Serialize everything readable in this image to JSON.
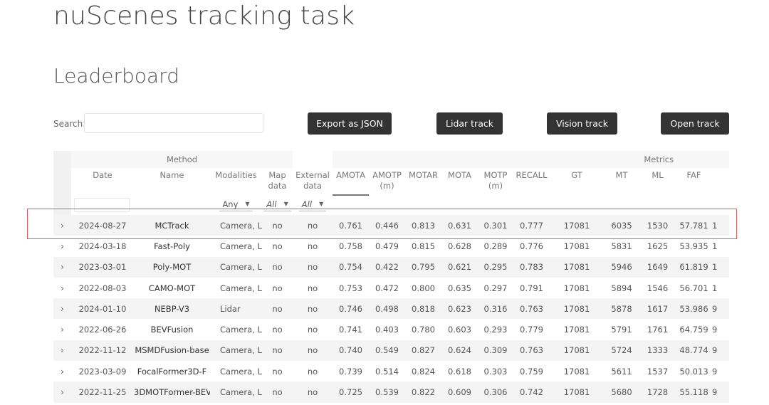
{
  "page": {
    "title": "nuScenes tracking task",
    "section": "Leaderboard"
  },
  "search": {
    "label": "Search:",
    "value": "",
    "placeholder": ""
  },
  "buttons": {
    "export_json": "Export as JSON",
    "lidar_track": "Lidar track",
    "vision_track": "Vision track",
    "open_track": "Open track"
  },
  "table": {
    "group_headers": {
      "method": "Method",
      "metrics": "Metrics"
    },
    "columns": {
      "date": "Date",
      "name": "Name",
      "modalities": "Modalities",
      "map_data": "Map data",
      "external_data": "External data",
      "amota": "AMOTA",
      "amotp": "AMOTP (m)",
      "motar": "MOTAR",
      "mota": "MOTA",
      "motp": "MOTP (m)",
      "recall": "RECALL",
      "gt": "GT",
      "mt": "MT",
      "ml": "ML",
      "faf": "FAF"
    },
    "sorted_column": "AMOTA",
    "filters": {
      "modalities": "Any",
      "map_data": "All",
      "external_data": "All"
    },
    "rows": [
      {
        "date": "2024-08-27",
        "name": "MCTrack",
        "modalities": "Camera, Lida",
        "map_data": "no",
        "external_data": "no",
        "amota": "0.761",
        "amotp": "0.446",
        "motar": "0.813",
        "mota": "0.631",
        "motp": "0.301",
        "recall": "0.777",
        "gt": "17081",
        "mt": "6035",
        "ml": "1530",
        "faf": "57.781",
        "next": "1"
      },
      {
        "date": "2024-03-18",
        "name": "Fast-Poly",
        "modalities": "Camera, Lida",
        "map_data": "no",
        "external_data": "no",
        "amota": "0.758",
        "amotp": "0.479",
        "motar": "0.815",
        "mota": "0.628",
        "motp": "0.289",
        "recall": "0.776",
        "gt": "17081",
        "mt": "5831",
        "ml": "1625",
        "faf": "53.935",
        "next": "1"
      },
      {
        "date": "2023-03-01",
        "name": "Poly-MOT",
        "modalities": "Camera, Lida",
        "map_data": "no",
        "external_data": "no",
        "amota": "0.754",
        "amotp": "0.422",
        "motar": "0.795",
        "mota": "0.621",
        "motp": "0.295",
        "recall": "0.783",
        "gt": "17081",
        "mt": "5946",
        "ml": "1649",
        "faf": "61.819",
        "next": "1"
      },
      {
        "date": "2022-08-03",
        "name": "CAMO-MOT",
        "modalities": "Camera, Lida",
        "map_data": "no",
        "external_data": "no",
        "amota": "0.753",
        "amotp": "0.472",
        "motar": "0.800",
        "mota": "0.635",
        "motp": "0.297",
        "recall": "0.791",
        "gt": "17081",
        "mt": "5894",
        "ml": "1546",
        "faf": "56.701",
        "next": "1"
      },
      {
        "date": "2024-01-10",
        "name": "NEBP-V3",
        "modalities": "Lidar",
        "map_data": "no",
        "external_data": "no",
        "amota": "0.746",
        "amotp": "0.498",
        "motar": "0.818",
        "mota": "0.623",
        "motp": "0.316",
        "recall": "0.763",
        "gt": "17081",
        "mt": "5878",
        "ml": "1617",
        "faf": "53.986",
        "next": "9"
      },
      {
        "date": "2022-06-26",
        "name": "BEVFusion",
        "modalities": "Camera, Lida",
        "map_data": "no",
        "external_data": "no",
        "amota": "0.741",
        "amotp": "0.403",
        "motar": "0.780",
        "mota": "0.603",
        "motp": "0.293",
        "recall": "0.779",
        "gt": "17081",
        "mt": "5791",
        "ml": "1761",
        "faf": "64.759",
        "next": "9"
      },
      {
        "date": "2022-11-12",
        "name": "MSMDFusion-base",
        "modalities": "Camera, Lida",
        "map_data": "no",
        "external_data": "no",
        "amota": "0.740",
        "amotp": "0.549",
        "motar": "0.827",
        "mota": "0.624",
        "motp": "0.309",
        "recall": "0.763",
        "gt": "17081",
        "mt": "5724",
        "ml": "1333",
        "faf": "48.774",
        "next": "9"
      },
      {
        "date": "2023-03-09",
        "name": "FocalFormer3D-F",
        "modalities": "Camera, Lida",
        "map_data": "no",
        "external_data": "no",
        "amota": "0.739",
        "amotp": "0.514",
        "motar": "0.824",
        "mota": "0.618",
        "motp": "0.303",
        "recall": "0.759",
        "gt": "17081",
        "mt": "5611",
        "ml": "1537",
        "faf": "50.013",
        "next": "9"
      },
      {
        "date": "2022-11-25",
        "name": "3DMOTFormer-BEV",
        "modalities": "Camera, Lida",
        "map_data": "no",
        "external_data": "no",
        "amota": "0.725",
        "amotp": "0.539",
        "motar": "0.822",
        "mota": "0.609",
        "motp": "0.306",
        "recall": "0.742",
        "gt": "17081",
        "mt": "5680",
        "ml": "1728",
        "faf": "55.118",
        "next": "9"
      }
    ]
  },
  "icons": {
    "expand": "chevron-right-icon",
    "dropdown": "caret-down-icon"
  },
  "colors": {
    "button_bg": "#333333",
    "highlight_border": "#e05a5a",
    "row_stripe": "#f4f4f4"
  }
}
